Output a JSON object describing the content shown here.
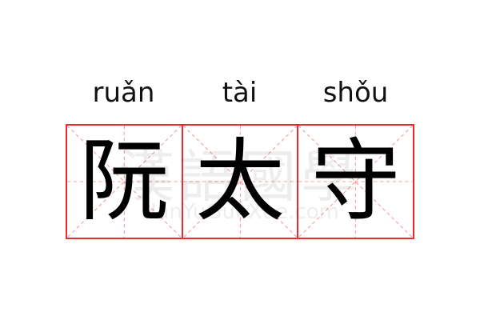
{
  "pinyin": [
    "ruǎn",
    "tài",
    "shǒu"
  ],
  "characters": [
    "阮",
    "太",
    "守"
  ],
  "watermark": {
    "chinese": "漢語國學",
    "latin": "HanYuGuoXue.com"
  },
  "colors": {
    "grid_border": "#ee2a2a",
    "guide_lines": "#f4a0a0",
    "character": "#000000"
  }
}
